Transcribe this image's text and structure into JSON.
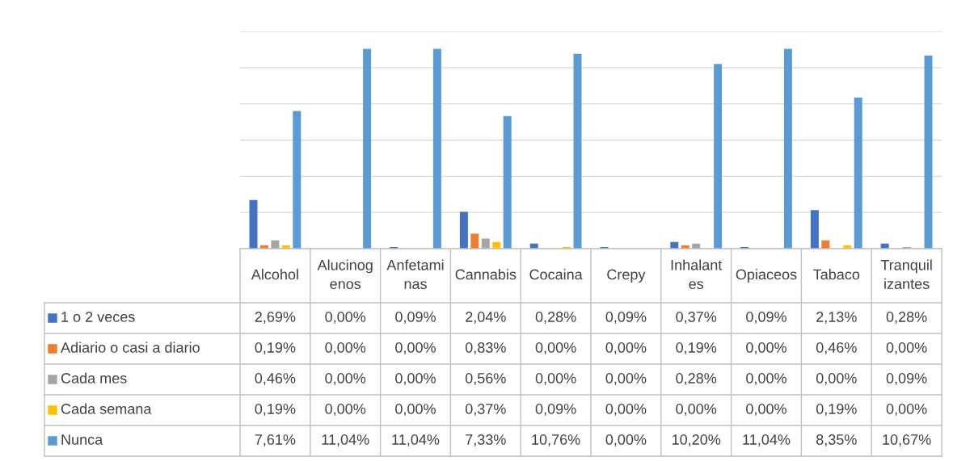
{
  "chart_data": {
    "type": "bar",
    "categories": [
      "Alcohol",
      "Alucinogenos",
      "Anfetaminas",
      "Cannabis",
      "Cocaina",
      "Crepy",
      "Inhalantes",
      "Opiaceos",
      "Tabaco",
      "Tranquilizantes"
    ],
    "series": [
      {
        "name": "1 o 2 veces",
        "color": "#4472c4",
        "values": [
          2.69,
          0.0,
          0.09,
          2.04,
          0.28,
          0.09,
          0.37,
          0.09,
          2.13,
          0.28
        ],
        "value_labels": [
          "2,69%",
          "0,00%",
          "0,09%",
          "2,04%",
          "0,28%",
          "0,09%",
          "0,37%",
          "0,09%",
          "2,13%",
          "0,28%"
        ]
      },
      {
        "name": "Adiario o casi a diario",
        "color": "#ed7d31",
        "values": [
          0.19,
          0.0,
          0.0,
          0.83,
          0.0,
          0.0,
          0.19,
          0.0,
          0.46,
          0.0
        ],
        "value_labels": [
          "0,19%",
          "0,00%",
          "0,00%",
          "0,83%",
          "0,00%",
          "0,00%",
          "0,19%",
          "0,00%",
          "0,46%",
          "0,00%"
        ]
      },
      {
        "name": "Cada mes",
        "color": "#a5a5a5",
        "values": [
          0.46,
          0.0,
          0.0,
          0.56,
          0.0,
          0.0,
          0.28,
          0.0,
          0.0,
          0.09
        ],
        "value_labels": [
          "0,46%",
          "0,00%",
          "0,00%",
          "0,56%",
          "0,00%",
          "0,00%",
          "0,28%",
          "0,00%",
          "0,00%",
          "0,09%"
        ]
      },
      {
        "name": "Cada semana",
        "color": "#ffc000",
        "values": [
          0.19,
          0.0,
          0.0,
          0.37,
          0.09,
          0.0,
          0.0,
          0.0,
          0.19,
          0.0
        ],
        "value_labels": [
          "0,19%",
          "0,00%",
          "0,00%",
          "0,37%",
          "0,09%",
          "0,00%",
          "0,00%",
          "0,00%",
          "0,19%",
          "0,00%"
        ]
      },
      {
        "name": "Nunca",
        "color": "#5b9bd5",
        "values": [
          7.61,
          11.04,
          11.04,
          7.33,
          10.76,
          0.0,
          10.2,
          11.04,
          8.35,
          10.67
        ],
        "value_labels": [
          "7,61%",
          "11,04%",
          "11,04%",
          "7,33%",
          "10,76%",
          "0,00%",
          "10,20%",
          "11,04%",
          "8,35%",
          "10,67%"
        ]
      }
    ],
    "ylim": [
      0,
      12
    ],
    "yticks": [
      {
        "value": 0,
        "label": null
      },
      {
        "value": 2,
        "label": null
      },
      {
        "value": 4,
        "label": null
      },
      {
        "value": 6,
        "label": null
      },
      {
        "value": 8,
        "label": null
      },
      {
        "value": 10,
        "label": null
      },
      {
        "value": 12,
        "label": null
      }
    ],
    "grid": "y",
    "legend": "bottom"
  }
}
